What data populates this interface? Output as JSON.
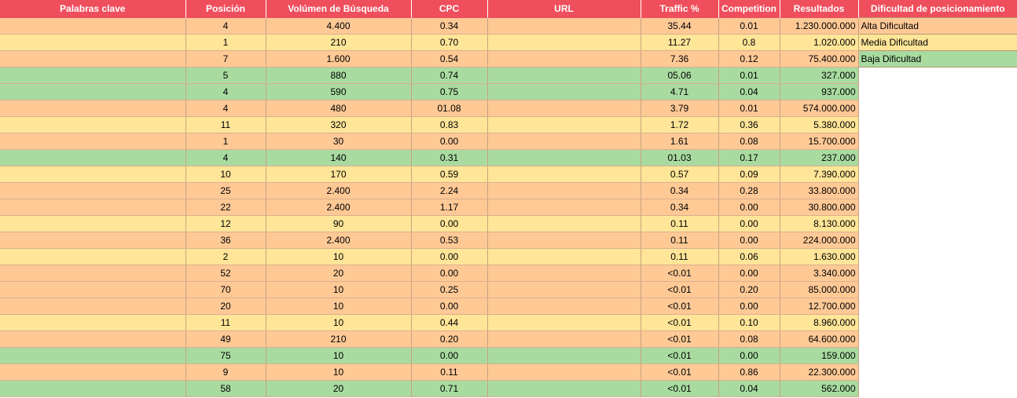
{
  "headers": [
    "Palabras clave",
    "Posición",
    "Volúmen de Búsqueda",
    "CPC",
    "URL",
    "Traffic %",
    "Competition",
    "Resultados",
    "Dificultad de posicionamiento"
  ],
  "legend": [
    "Alta Dificultad",
    "Media Dificultad",
    "Baja Dificultad"
  ],
  "colors": {
    "header": "#ef4e5c",
    "alta": "#ffc996",
    "media": "#ffe598",
    "baja": "#a9dba1"
  },
  "rows": [
    {
      "level": "alta",
      "pos": "4",
      "vol": "4.400",
      "cpc": "0.34",
      "traffic": "35.44",
      "comp": "0.01",
      "res": "1.230.000.000"
    },
    {
      "level": "media",
      "pos": "1",
      "vol": "210",
      "cpc": "0.70",
      "traffic": "11.27",
      "comp": "0.8",
      "res": "1.020.000"
    },
    {
      "level": "alta",
      "pos": "7",
      "vol": "1.600",
      "cpc": "0.54",
      "traffic": "7.36",
      "comp": "0.12",
      "res": "75.400.000"
    },
    {
      "level": "baja",
      "pos": "5",
      "vol": "880",
      "cpc": "0.74",
      "traffic": "05.06",
      "comp": "0.01",
      "res": "327.000"
    },
    {
      "level": "baja",
      "pos": "4",
      "vol": "590",
      "cpc": "0.75",
      "traffic": "4.71",
      "comp": "0.04",
      "res": "937.000"
    },
    {
      "level": "alta",
      "pos": "4",
      "vol": "480",
      "cpc": "01.08",
      "traffic": "3.79",
      "comp": "0.01",
      "res": "574.000.000"
    },
    {
      "level": "media",
      "pos": "11",
      "vol": "320",
      "cpc": "0.83",
      "traffic": "1.72",
      "comp": "0.36",
      "res": "5.380.000"
    },
    {
      "level": "alta",
      "pos": "1",
      "vol": "30",
      "cpc": "0.00",
      "traffic": "1.61",
      "comp": "0.08",
      "res": "15.700.000"
    },
    {
      "level": "baja",
      "pos": "4",
      "vol": "140",
      "cpc": "0.31",
      "traffic": "01.03",
      "comp": "0.17",
      "res": "237.000"
    },
    {
      "level": "media",
      "pos": "10",
      "vol": "170",
      "cpc": "0.59",
      "traffic": "0.57",
      "comp": "0.09",
      "res": "7.390.000"
    },
    {
      "level": "alta",
      "pos": "25",
      "vol": "2.400",
      "cpc": "2.24",
      "traffic": "0.34",
      "comp": "0.28",
      "res": "33.800.000"
    },
    {
      "level": "alta",
      "pos": "22",
      "vol": "2.400",
      "cpc": "1.17",
      "traffic": "0.34",
      "comp": "0.00",
      "res": "30.800.000"
    },
    {
      "level": "media",
      "pos": "12",
      "vol": "90",
      "cpc": "0.00",
      "traffic": "0.11",
      "comp": "0.00",
      "res": "8.130.000"
    },
    {
      "level": "alta",
      "pos": "36",
      "vol": "2.400",
      "cpc": "0.53",
      "traffic": "0.11",
      "comp": "0.00",
      "res": "224.000.000"
    },
    {
      "level": "media",
      "pos": "2",
      "vol": "10",
      "cpc": "0.00",
      "traffic": "0.11",
      "comp": "0.06",
      "res": "1.630.000"
    },
    {
      "level": "alta",
      "pos": "52",
      "vol": "20",
      "cpc": "0.00",
      "traffic": "<0.01",
      "comp": "0.00",
      "res": "3.340.000"
    },
    {
      "level": "alta",
      "pos": "70",
      "vol": "10",
      "cpc": "0.25",
      "traffic": "<0.01",
      "comp": "0.20",
      "res": "85.000.000"
    },
    {
      "level": "alta",
      "pos": "20",
      "vol": "10",
      "cpc": "0.00",
      "traffic": "<0.01",
      "comp": "0.00",
      "res": "12.700.000"
    },
    {
      "level": "media",
      "pos": "11",
      "vol": "10",
      "cpc": "0.44",
      "traffic": "<0.01",
      "comp": "0.10",
      "res": "8.960.000"
    },
    {
      "level": "alta",
      "pos": "49",
      "vol": "210",
      "cpc": "0.20",
      "traffic": "<0.01",
      "comp": "0.08",
      "res": "64.600.000"
    },
    {
      "level": "baja",
      "pos": "75",
      "vol": "10",
      "cpc": "0.00",
      "traffic": "<0.01",
      "comp": "0.00",
      "res": "159.000"
    },
    {
      "level": "alta",
      "pos": "9",
      "vol": "10",
      "cpc": "0.11",
      "traffic": "<0.01",
      "comp": "0.86",
      "res": "22.300.000"
    },
    {
      "level": "baja",
      "pos": "58",
      "vol": "20",
      "cpc": "0.71",
      "traffic": "<0.01",
      "comp": "0.04",
      "res": "562.000"
    }
  ]
}
